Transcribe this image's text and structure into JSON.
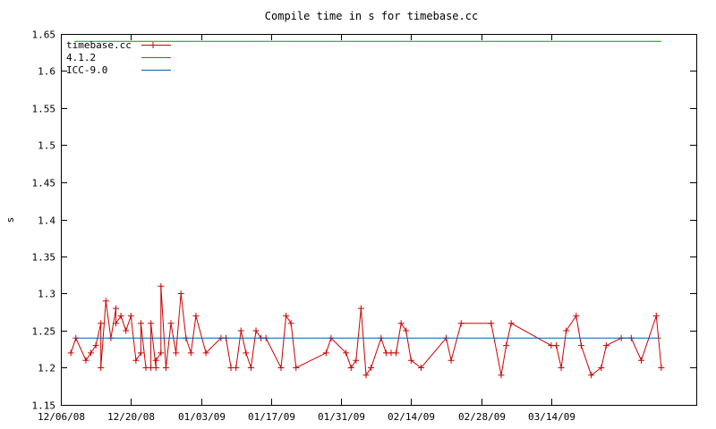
{
  "chart_data": {
    "type": "line",
    "title": "Compile time in s for timebase.cc",
    "xlabel": "",
    "ylabel": "s",
    "x_axis_kind": "date",
    "xlim": [
      "2008-12-06",
      "2009-04-12"
    ],
    "ylim": [
      1.15,
      1.65
    ],
    "yticks": [
      "1.15",
      "1.2",
      "1.25",
      "1.3",
      "1.35",
      "1.4",
      "1.45",
      "1.5",
      "1.55",
      "1.6",
      "1.65"
    ],
    "xticks": [
      {
        "date": "2008-12-06",
        "label": "12/06/08"
      },
      {
        "date": "2008-12-20",
        "label": "12/20/08"
      },
      {
        "date": "2009-01-03",
        "label": "01/03/09"
      },
      {
        "date": "2009-01-17",
        "label": "01/17/09"
      },
      {
        "date": "2009-01-31",
        "label": "01/31/09"
      },
      {
        "date": "2009-02-14",
        "label": "02/14/09"
      },
      {
        "date": "2009-02-28",
        "label": "02/28/09"
      },
      {
        "date": "2009-03-14",
        "label": "03/14/09"
      }
    ],
    "grid": false,
    "legend_position": "top-left",
    "series": [
      {
        "name": "timebase.cc",
        "color": "#cc0000",
        "marker": "plus",
        "points": [
          [
            "2008-12-08",
            1.22
          ],
          [
            "2008-12-09",
            1.24
          ],
          [
            "2008-12-11",
            1.21
          ],
          [
            "2008-12-12",
            1.22
          ],
          [
            "2008-12-13",
            1.23
          ],
          [
            "2008-12-14",
            1.26
          ],
          [
            "2008-12-14",
            1.2
          ],
          [
            "2008-12-15",
            1.29
          ],
          [
            "2008-12-16",
            1.24
          ],
          [
            "2008-12-17",
            1.28
          ],
          [
            "2008-12-17",
            1.26
          ],
          [
            "2008-12-18",
            1.27
          ],
          [
            "2008-12-19",
            1.25
          ],
          [
            "2008-12-20",
            1.27
          ],
          [
            "2008-12-21",
            1.21
          ],
          [
            "2008-12-22",
            1.22
          ],
          [
            "2008-12-22",
            1.26
          ],
          [
            "2008-12-23",
            1.2
          ],
          [
            "2008-12-24",
            1.2
          ],
          [
            "2008-12-24",
            1.26
          ],
          [
            "2008-12-25",
            1.2
          ],
          [
            "2008-12-25",
            1.21
          ],
          [
            "2008-12-26",
            1.22
          ],
          [
            "2008-12-26",
            1.31
          ],
          [
            "2008-12-27",
            1.2
          ],
          [
            "2008-12-28",
            1.26
          ],
          [
            "2008-12-29",
            1.22
          ],
          [
            "2008-12-30",
            1.3
          ],
          [
            "2008-12-31",
            1.24
          ],
          [
            "2009-01-01",
            1.22
          ],
          [
            "2009-01-02",
            1.27
          ],
          [
            "2009-01-04",
            1.22
          ],
          [
            "2009-01-07",
            1.24
          ],
          [
            "2009-01-08",
            1.24
          ],
          [
            "2009-01-09",
            1.2
          ],
          [
            "2009-01-10",
            1.2
          ],
          [
            "2009-01-11",
            1.25
          ],
          [
            "2009-01-12",
            1.22
          ],
          [
            "2009-01-13",
            1.2
          ],
          [
            "2009-01-14",
            1.25
          ],
          [
            "2009-01-15",
            1.24
          ],
          [
            "2009-01-16",
            1.24
          ],
          [
            "2009-01-19",
            1.2
          ],
          [
            "2009-01-20",
            1.27
          ],
          [
            "2009-01-21",
            1.26
          ],
          [
            "2009-01-22",
            1.2
          ],
          [
            "2009-01-28",
            1.22
          ],
          [
            "2009-01-29",
            1.24
          ],
          [
            "2009-02-01",
            1.22
          ],
          [
            "2009-02-02",
            1.2
          ],
          [
            "2009-02-03",
            1.21
          ],
          [
            "2009-02-04",
            1.28
          ],
          [
            "2009-02-05",
            1.19
          ],
          [
            "2009-02-06",
            1.2
          ],
          [
            "2009-02-08",
            1.24
          ],
          [
            "2009-02-09",
            1.22
          ],
          [
            "2009-02-10",
            1.22
          ],
          [
            "2009-02-11",
            1.22
          ],
          [
            "2009-02-12",
            1.26
          ],
          [
            "2009-02-13",
            1.25
          ],
          [
            "2009-02-14",
            1.21
          ],
          [
            "2009-02-16",
            1.2
          ],
          [
            "2009-02-21",
            1.24
          ],
          [
            "2009-02-22",
            1.21
          ],
          [
            "2009-02-24",
            1.26
          ],
          [
            "2009-03-02",
            1.26
          ],
          [
            "2009-03-04",
            1.19
          ],
          [
            "2009-03-05",
            1.23
          ],
          [
            "2009-03-06",
            1.26
          ],
          [
            "2009-03-14",
            1.23
          ],
          [
            "2009-03-15",
            1.23
          ],
          [
            "2009-03-16",
            1.2
          ],
          [
            "2009-03-17",
            1.25
          ],
          [
            "2009-03-19",
            1.27
          ],
          [
            "2009-03-20",
            1.23
          ],
          [
            "2009-03-22",
            1.19
          ],
          [
            "2009-03-24",
            1.2
          ],
          [
            "2009-03-25",
            1.23
          ],
          [
            "2009-03-28",
            1.24
          ],
          [
            "2009-03-30",
            1.24
          ],
          [
            "2009-04-01",
            1.21
          ],
          [
            "2009-04-04",
            1.27
          ],
          [
            "2009-04-05",
            1.2
          ]
        ]
      },
      {
        "name": "4.1.2",
        "color": "#00a000",
        "marker": "none",
        "points": [
          [
            "2008-12-09",
            1.64
          ],
          [
            "2009-04-05",
            1.64
          ]
        ]
      },
      {
        "name": "ICC-9.0",
        "color": "#0060b0",
        "marker": "none",
        "points": [
          [
            "2008-12-09",
            1.24
          ],
          [
            "2009-04-05",
            1.24
          ]
        ]
      }
    ]
  }
}
